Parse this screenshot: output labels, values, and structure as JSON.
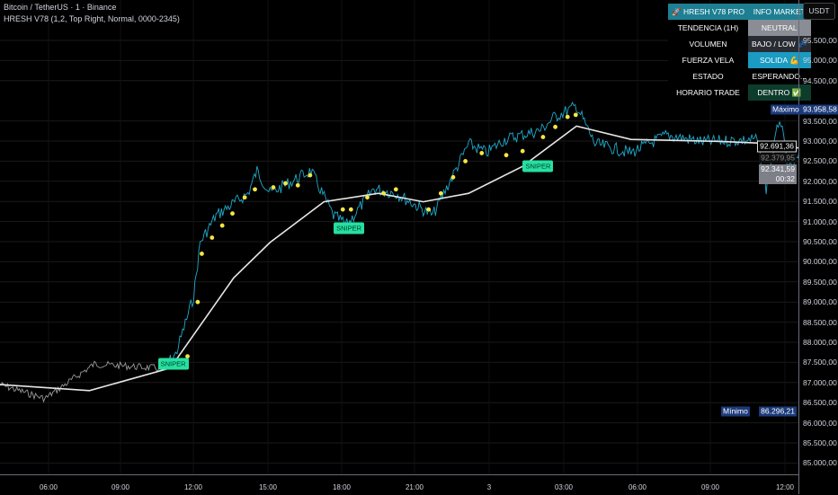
{
  "header": {
    "symbol_line": "Bitcoin / TetherUS · 1 · Binance",
    "indicator_line": "HRESH V78 (1,2, Top Right, Normal, 0000-2345)"
  },
  "currency_button": "USDT",
  "info_table": {
    "title_left": "🚀 HRESH V78 PRO",
    "title_right": "INFO MARKET",
    "title_bg": "#1e7f93",
    "rows": [
      {
        "label": "TENDENCIA (1H)",
        "value": "NEUTRAL",
        "bg": "#8a8d94"
      },
      {
        "label": "VOLUMEN",
        "value": "BAJO / LOW 💤",
        "bg": "#2a2c33"
      },
      {
        "label": "FUERZA VELA",
        "value": "SOLIDA 💪",
        "bg": "#1a9bc2"
      },
      {
        "label": "ESTADO",
        "value": "ESPERANDO...",
        "bg": "#000000"
      },
      {
        "label": "HORARIO TRADE",
        "value": "DENTRO ✅",
        "bg": "#0d3b2c"
      }
    ]
  },
  "price_tags": {
    "max_label": "Máximo",
    "max_value": "93.958,58",
    "min_label": "Mínimo",
    "min_value": "86.296,21",
    "tag_a": "92.691,36",
    "tag_b": "92.379,95",
    "last_price": "92.341,59",
    "countdown": "00:32"
  },
  "chart_data": {
    "type": "line",
    "y_ticks": [
      "95.500,00",
      "95.000,00",
      "94.500,00",
      "93.500,00",
      "93.000,00",
      "92.500,00",
      "92.000,00",
      "91.500,00",
      "91.000,00",
      "90.500,00",
      "90.000,00",
      "89.500,00",
      "89.000,00",
      "88.500,00",
      "88.000,00",
      "87.500,00",
      "87.000,00",
      "86.500,00",
      "86.000,00",
      "85.500,00",
      "85.000,00"
    ],
    "x_ticks": [
      "06:00",
      "09:00",
      "12:00",
      "15:00",
      "18:00",
      "21:00",
      "3",
      "03:00",
      "06:00",
      "09:00",
      "12:00"
    ],
    "ylim": [
      84800,
      96300
    ],
    "grid": true,
    "colors": {
      "price": "#1fa9c9",
      "price_pre": "#9a9a9a",
      "ma": "#e6e6e6",
      "signal": "#f5e642",
      "sniper": "#26e0a0"
    },
    "price": [
      [
        "2 04:00",
        86950
      ],
      [
        "2 05:51",
        86600
      ],
      [
        "2 07:52",
        87460
      ],
      [
        "2 10:38",
        87350
      ],
      [
        "2 11:11",
        87690
      ],
      [
        "2 11:55",
        89140
      ],
      [
        "2 12:11",
        90480
      ],
      [
        "2 12:50",
        91150
      ],
      [
        "2 14:08",
        91700
      ],
      [
        "2 14:30",
        92260
      ],
      [
        "2 15:02",
        91700
      ],
      [
        "2 16:42",
        92260
      ],
      [
        "2 17:37",
        91150
      ],
      [
        "2 18:10",
        90920
      ],
      [
        "2 19:16",
        91820
      ],
      [
        "2 20:11",
        91700
      ],
      [
        "2 21:40",
        91150
      ],
      [
        "2 22:24",
        92040
      ],
      [
        "2 23:08",
        92930
      ],
      [
        "2 23:52",
        92710
      ],
      [
        "3 00:36",
        93040
      ],
      [
        "3 02:04",
        93270
      ],
      [
        "3 02:38",
        93600
      ],
      [
        "3 03:32",
        93870
      ],
      [
        "3 04:17",
        92930
      ],
      [
        "3 05:45",
        92710
      ],
      [
        "3 07:13",
        93150
      ],
      [
        "3 08:41",
        92980
      ],
      [
        "3 10:54",
        93040
      ],
      [
        "3 11:16",
        91820
      ],
      [
        "3 11:49",
        93600
      ],
      [
        "3 12:11",
        92260
      ],
      [
        "3 12:40",
        92660
      ]
    ],
    "ma": [
      [
        "2 04:00",
        86950
      ],
      [
        "2 07:40",
        86800
      ],
      [
        "2 10:58",
        87360
      ],
      [
        "2 13:33",
        89600
      ],
      [
        "2 15:02",
        90480
      ],
      [
        "2 17:14",
        91490
      ],
      [
        "2 19:27",
        91700
      ],
      [
        "2 21:17",
        91490
      ],
      [
        "2 23:08",
        91700
      ],
      [
        "3 01:20",
        92370
      ],
      [
        "3 03:32",
        93370
      ],
      [
        "3 05:45",
        93040
      ],
      [
        "3 09:25",
        92990
      ],
      [
        "3 11:38",
        92930
      ],
      [
        "3 12:40",
        92820
      ]
    ],
    "signals": [
      [
        "2 11:40",
        87650
      ],
      [
        "2 12:05",
        89000
      ],
      [
        "2 12:15",
        90200
      ],
      [
        "2 12:40",
        90600
      ],
      [
        "2 13:05",
        90900
      ],
      [
        "2 13:30",
        91200
      ],
      [
        "2 14:00",
        91600
      ],
      [
        "2 14:25",
        91800
      ],
      [
        "2 15:10",
        91850
      ],
      [
        "2 15:40",
        91950
      ],
      [
        "2 16:10",
        91900
      ],
      [
        "2 16:40",
        92150
      ],
      [
        "2 18:00",
        91300
      ],
      [
        "2 18:20",
        91300
      ],
      [
        "2 19:00",
        91600
      ],
      [
        "2 19:40",
        91700
      ],
      [
        "2 20:10",
        91800
      ],
      [
        "2 21:30",
        91300
      ],
      [
        "2 22:00",
        91700
      ],
      [
        "2 22:30",
        92100
      ],
      [
        "2 23:00",
        92500
      ],
      [
        "2 23:40",
        92700
      ],
      [
        "3 00:40",
        92650
      ],
      [
        "3 01:20",
        92750
      ],
      [
        "3 02:10",
        93100
      ],
      [
        "3 02:40",
        93350
      ],
      [
        "3 03:10",
        93600
      ],
      [
        "3 03:30",
        93650
      ]
    ],
    "sniper_label": "SNIPER",
    "snipers": [
      [
        "2 11:05",
        87470
      ],
      [
        "2 18:15",
        90840
      ],
      [
        "3 01:58",
        92380
      ]
    ]
  }
}
